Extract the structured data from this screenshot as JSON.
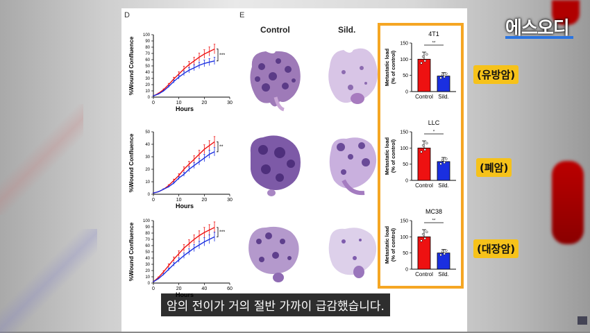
{
  "channel_logo": "에스오디",
  "subtitle": "암의 전이가 거의 절반 가까이 급감했습니다.",
  "labels": {
    "breast": "(유방암)",
    "lung": "(폐암)",
    "colon": "(대장암)"
  },
  "panels": {
    "d": "D",
    "e": "E"
  },
  "columns": {
    "control": "Control",
    "sild": "Sild."
  },
  "colors": {
    "control": "#ee1111",
    "sild": "#1a2fe0",
    "highlight": "#f5a623"
  },
  "chart_data": [
    {
      "type": "line",
      "xlabel": "Hours",
      "ylabel": "%Wound Confluence",
      "xlim": [
        0,
        30
      ],
      "ylim": [
        0,
        100
      ],
      "xticks": [
        0,
        10,
        20,
        30
      ],
      "yticks": [
        0,
        10,
        20,
        30,
        40,
        50,
        60,
        70,
        80,
        90,
        100
      ],
      "significance": "***",
      "x": [
        0,
        2,
        4,
        6,
        8,
        10,
        12,
        14,
        16,
        18,
        20,
        22,
        24
      ],
      "series": [
        {
          "color": "#ee1111",
          "values": [
            2,
            6,
            12,
            20,
            29,
            37,
            45,
            52,
            58,
            64,
            69,
            73,
            77
          ]
        },
        {
          "color": "#1a2fe0",
          "values": [
            2,
            5,
            10,
            17,
            25,
            32,
            38,
            43,
            47,
            51,
            54,
            56,
            58
          ]
        }
      ]
    },
    {
      "type": "line",
      "xlabel": "Hours",
      "ylabel": "%Wound Confluence",
      "xlim": [
        0,
        30
      ],
      "ylim": [
        0,
        50
      ],
      "xticks": [
        0,
        10,
        20,
        30
      ],
      "yticks": [
        0,
        10,
        20,
        30,
        40,
        50
      ],
      "significance": "**",
      "x": [
        0,
        2,
        4,
        6,
        8,
        10,
        12,
        14,
        16,
        18,
        20,
        22,
        24
      ],
      "series": [
        {
          "color": "#ee1111",
          "values": [
            1,
            2,
            4,
            7,
            11,
            15,
            20,
            24,
            28,
            32,
            36,
            39,
            42
          ]
        },
        {
          "color": "#1a2fe0",
          "values": [
            1,
            2,
            4,
            6,
            9,
            13,
            16,
            20,
            23,
            26,
            29,
            32,
            34
          ]
        }
      ]
    },
    {
      "type": "line",
      "xlabel": "Hours",
      "ylabel": "%Wound Confluence",
      "xlim": [
        0,
        60
      ],
      "ylim": [
        0,
        100
      ],
      "xticks": [
        0,
        20,
        40,
        60
      ],
      "yticks": [
        0,
        10,
        20,
        30,
        40,
        50,
        60,
        70,
        80,
        90,
        100
      ],
      "significance": "***",
      "x": [
        0,
        4,
        8,
        12,
        16,
        20,
        24,
        28,
        32,
        36,
        40,
        44,
        48
      ],
      "series": [
        {
          "color": "#ee1111",
          "values": [
            2,
            9,
            18,
            28,
            38,
            47,
            56,
            63,
            70,
            76,
            81,
            85,
            89
          ]
        },
        {
          "color": "#1a2fe0",
          "values": [
            2,
            7,
            14,
            22,
            30,
            37,
            44,
            50,
            56,
            61,
            66,
            70,
            74
          ]
        }
      ]
    },
    {
      "type": "bar",
      "title": "4T1",
      "ylabel": "Metastatic load\n(% of control)",
      "categories": [
        "Control",
        "Sild."
      ],
      "values": [
        100,
        48
      ],
      "ylim": [
        0,
        150
      ],
      "yticks": [
        0,
        50,
        100,
        150
      ],
      "significance": "**"
    },
    {
      "type": "bar",
      "title": "LLC",
      "ylabel": "Metastatic load\n(% of control)",
      "categories": [
        "Control",
        "Sild."
      ],
      "values": [
        100,
        58
      ],
      "ylim": [
        0,
        150
      ],
      "yticks": [
        0,
        50,
        100,
        150
      ],
      "significance": "*"
    },
    {
      "type": "bar",
      "title": "MC38",
      "ylabel": "Metastatic load\n(% of control)",
      "categories": [
        "Control",
        "Sild."
      ],
      "values": [
        100,
        50
      ],
      "ylim": [
        0,
        150
      ],
      "yticks": [
        0,
        50,
        100,
        150
      ],
      "significance": "**"
    }
  ]
}
